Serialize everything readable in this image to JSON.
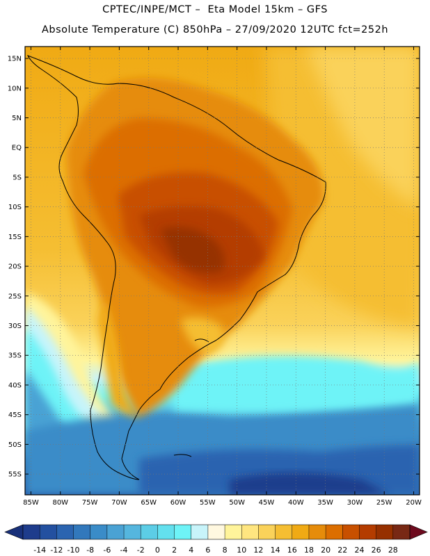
{
  "header": {
    "line1": "CPTEC/INPE/MCT –  Eta Model 15km – GFS",
    "line2": "Absolute Temperature (C) 850hPa – 27/09/2020 12UTC fct=252h"
  },
  "map": {
    "lat_labels": [
      "15N",
      "10N",
      "5N",
      "EQ",
      "5S",
      "10S",
      "15S",
      "20S",
      "25S",
      "30S",
      "35S",
      "40S",
      "45S",
      "50S",
      "55S"
    ],
    "lat_values": [
      15,
      10,
      5,
      0,
      -5,
      -10,
      -15,
      -20,
      -25,
      -30,
      -35,
      -40,
      -45,
      -50,
      -55
    ],
    "lon_labels": [
      "85W",
      "80W",
      "75W",
      "70W",
      "65W",
      "60W",
      "55W",
      "50W",
      "45W",
      "40W",
      "35W",
      "30W",
      "25W",
      "20W"
    ],
    "lon_values": [
      -85,
      -80,
      -75,
      -70,
      -65,
      -60,
      -55,
      -50,
      -45,
      -40,
      -35,
      -30,
      -25,
      -20
    ],
    "extent": {
      "lon_min": -86,
      "lon_max": -19,
      "lat_min": -58.5,
      "lat_max": 17
    }
  },
  "colorbar": {
    "labels": [
      "-14",
      "-12",
      "-10",
      "-8",
      "-6",
      "-4",
      "-2",
      "0",
      "2",
      "4",
      "6",
      "8",
      "10",
      "12",
      "14",
      "16",
      "18",
      "20",
      "22",
      "24",
      "26",
      "28"
    ],
    "colors": [
      "#1e3c8c",
      "#2350a0",
      "#2b64b0",
      "#3278bc",
      "#3a8cc8",
      "#4aa2d4",
      "#55b6de",
      "#5ccde6",
      "#63e0ee",
      "#6ef3f7",
      "#c8f4fa",
      "#fff8e0",
      "#fff49b",
      "#ffe680",
      "#fad25a",
      "#f5be32",
      "#f0aa14",
      "#e68c0a",
      "#dc6e00",
      "#c85000",
      "#b43c00",
      "#963000",
      "#782814"
    ],
    "low_arrow_color": "#18307a",
    "high_arrow_color": "#6e0a1e"
  }
}
